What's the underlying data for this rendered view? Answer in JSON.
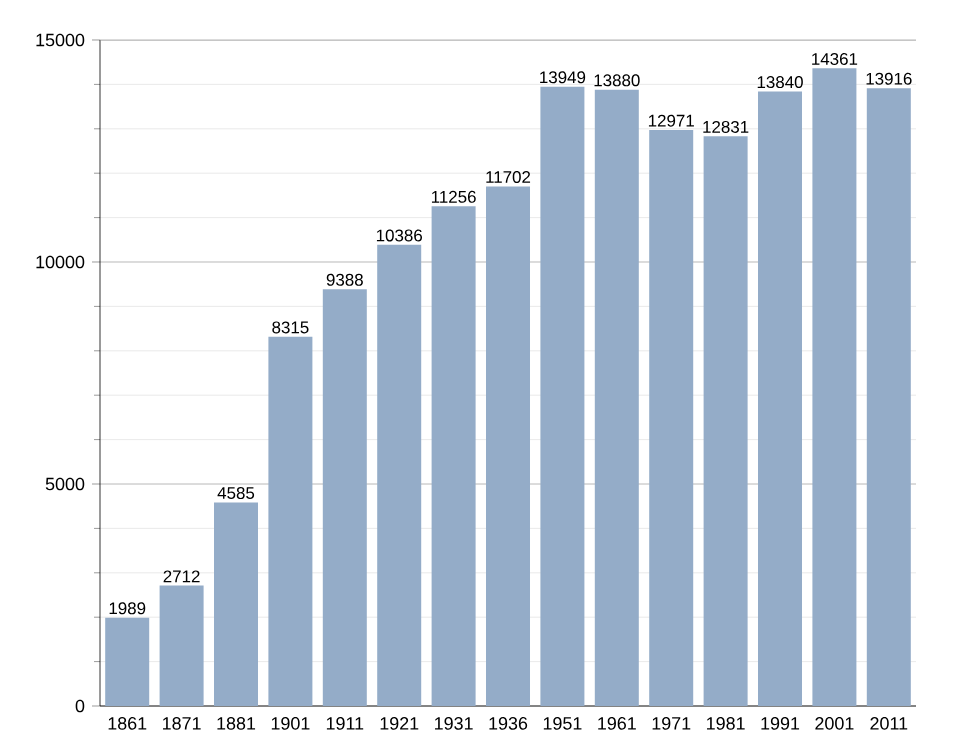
{
  "chart_data": {
    "type": "bar",
    "categories": [
      "1861",
      "1871",
      "1881",
      "1901",
      "1911",
      "1921",
      "1931",
      "1936",
      "1951",
      "1961",
      "1971",
      "1981",
      "1991",
      "2001",
      "2011"
    ],
    "values": [
      1989,
      2712,
      4585,
      8315,
      9388,
      10386,
      11256,
      11702,
      13949,
      13880,
      12971,
      12831,
      13840,
      14361,
      13916
    ],
    "color": "#94acc8",
    "ylim": [
      0,
      15000
    ],
    "yticks": [
      0,
      5000,
      10000,
      15000
    ],
    "grid": "y",
    "data_labels": true
  }
}
